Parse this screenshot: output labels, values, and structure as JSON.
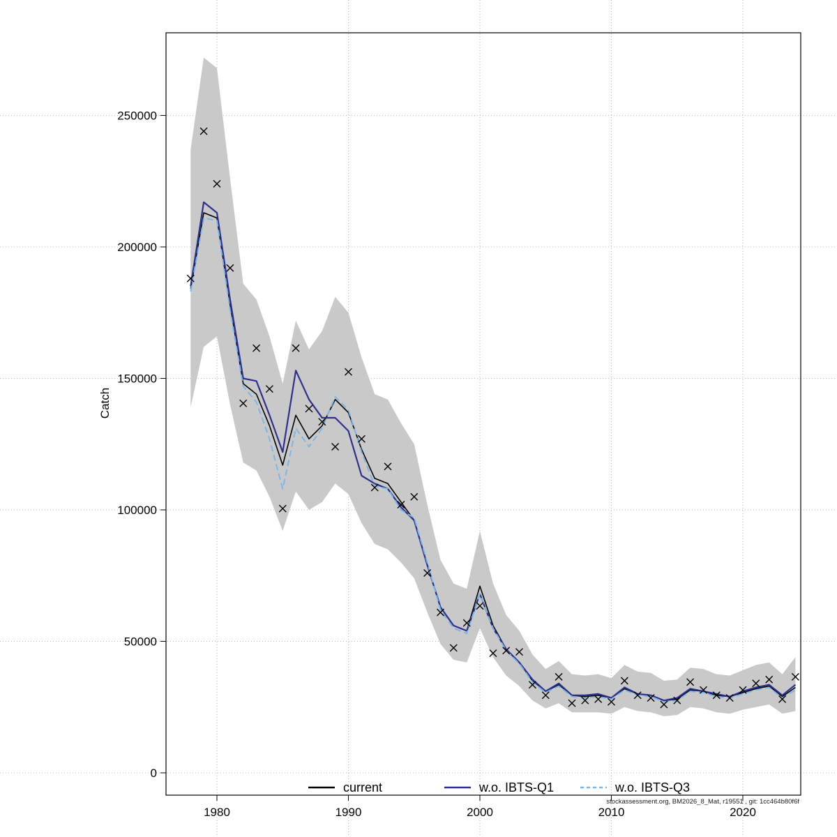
{
  "chart_data": {
    "type": "line",
    "title": "",
    "xlabel": "",
    "ylabel": "Catch",
    "legend_position": "bottom",
    "grid": true,
    "xlim": [
      1976.5,
      2025.5
    ],
    "ylim": [
      -9000,
      281000
    ],
    "x_ticks": [
      1980,
      1990,
      2000,
      2010,
      2020
    ],
    "y_ticks": [
      0,
      50000,
      100000,
      150000,
      200000,
      250000
    ],
    "years": [
      1978,
      1979,
      1980,
      1981,
      1982,
      1983,
      1984,
      1985,
      1986,
      1987,
      1988,
      1989,
      1990,
      1991,
      1992,
      1993,
      1994,
      1995,
      1996,
      1997,
      1998,
      1999,
      2000,
      2001,
      2002,
      2003,
      2004,
      2005,
      2006,
      2007,
      2008,
      2009,
      2010,
      2011,
      2012,
      2013,
      2014,
      2015,
      2016,
      2017,
      2018,
      2019,
      2020,
      2021,
      2022,
      2023,
      2024
    ],
    "observed_marker": "x",
    "observed": [
      188000,
      244000,
      224000,
      192000,
      140500,
      161500,
      146000,
      100500,
      161500,
      138500,
      133500,
      124000,
      152500,
      127000,
      108500,
      116500,
      102000,
      105000,
      76000,
      61000,
      47500,
      57000,
      63500,
      45500,
      46500,
      46000,
      33500,
      29500,
      36500,
      26500,
      27500,
      28000,
      27000,
      35000,
      29500,
      28500,
      26000,
      27500,
      34500,
      31500,
      29500,
      28500,
      31500,
      34000,
      35500,
      28000,
      36500
    ],
    "series": [
      {
        "name": "current",
        "color": "#000000",
        "width": 1.6,
        "dash": "",
        "values": [
          184000,
          213000,
          211000,
          178000,
          148000,
          144000,
          132000,
          117000,
          136000,
          127000,
          132000,
          142000,
          137000,
          123000,
          112000,
          110000,
          103000,
          96000,
          79000,
          63000,
          56000,
          54000,
          71000,
          56000,
          47000,
          42000,
          35000,
          31000,
          33500,
          29500,
          29000,
          29500,
          28500,
          32000,
          30000,
          29500,
          27500,
          28000,
          31500,
          31000,
          29500,
          29000,
          30500,
          32000,
          33000,
          29000,
          32500
        ]
      },
      {
        "name": "w.o. IBTS-Q1",
        "color": "#2F2F8F",
        "width": 2.2,
        "dash": "",
        "values": [
          185000,
          217000,
          213000,
          180000,
          150000,
          149000,
          136000,
          122000,
          153000,
          142000,
          135000,
          135000,
          130000,
          113000,
          110000,
          108000,
          101000,
          96000,
          79000,
          63000,
          56000,
          54000,
          68000,
          55000,
          47000,
          42000,
          35500,
          31000,
          34000,
          29500,
          29500,
          30000,
          28500,
          32500,
          30000,
          29500,
          27500,
          28500,
          32000,
          31000,
          30000,
          29000,
          31000,
          32500,
          33500,
          29500,
          33500
        ]
      },
      {
        "name": "w.o. IBTS-Q3",
        "color": "#79B7E7",
        "width": 2,
        "dash": "9 5",
        "values": [
          183000,
          211000,
          210000,
          176000,
          147000,
          141000,
          127000,
          108000,
          131000,
          124000,
          131000,
          143000,
          138000,
          122000,
          109000,
          108000,
          100000,
          97000,
          80000,
          62000,
          55000,
          53000,
          68000,
          55000,
          46500,
          41500,
          34500,
          30500,
          33000,
          29000,
          28500,
          29000,
          28000,
          31500,
          29500,
          29000,
          27000,
          27500,
          31000,
          30500,
          29000,
          28500,
          30000,
          31500,
          32500,
          28500,
          31500
        ]
      }
    ],
    "band": {
      "color": "#c9c9c9",
      "lower": [
        139000,
        162000,
        166000,
        140000,
        118000,
        115000,
        105000,
        92000,
        107000,
        100000,
        103000,
        110000,
        106000,
        95000,
        87000,
        85000,
        80000,
        74000,
        61000,
        49000,
        43000,
        42000,
        55000,
        44000,
        37000,
        33000,
        27500,
        24500,
        26500,
        23000,
        23000,
        23000,
        22500,
        25000,
        23500,
        23000,
        21500,
        22000,
        25000,
        24500,
        23000,
        22500,
        24000,
        25000,
        26000,
        22500,
        23500
      ],
      "upper": [
        237000,
        272000,
        268000,
        226000,
        186000,
        180000,
        166000,
        148000,
        172000,
        161000,
        168000,
        181000,
        175000,
        158000,
        144000,
        142000,
        133000,
        125000,
        102000,
        81000,
        72000,
        70000,
        92000,
        72000,
        60000,
        54000,
        45000,
        39500,
        42500,
        37500,
        37000,
        37500,
        36000,
        41000,
        38500,
        38000,
        35000,
        35500,
        40000,
        39500,
        37500,
        37000,
        39000,
        41000,
        42000,
        37500,
        44000
      ]
    },
    "footnote": "stockassessment.org, BM2026_8_Mat, r19551 , git: 1cc464b80f6f"
  }
}
